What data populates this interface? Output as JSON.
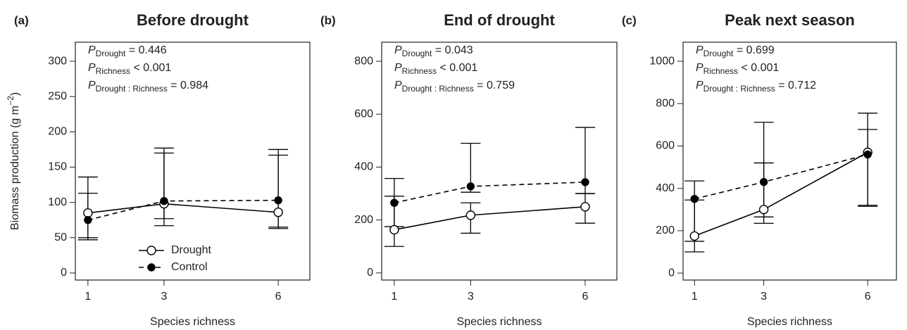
{
  "chart_data": [
    {
      "type": "line",
      "panel": "(a)",
      "title": "Before drought",
      "xlabel": "Species richness",
      "ylabel": "Biomass production (g m",
      "ylabel_exponent": "−2",
      "ylabel_end": ")",
      "x": [
        1,
        3,
        6
      ],
      "xlim": [
        0.67,
        6.83
      ],
      "xticks": [
        1,
        3,
        6
      ],
      "ylim": [
        -10,
        327
      ],
      "yticks": [
        0,
        50,
        100,
        150,
        200,
        250,
        300
      ],
      "legend": "bottom left",
      "stat_symbol": "P",
      "stats": [
        {
          "subscript": "Drought",
          "text": "= 0.446"
        },
        {
          "subscript": "Richness",
          "text": "< 0.001"
        },
        {
          "subscript": "Drought : Richness",
          "text": "= 0.984"
        }
      ],
      "series": [
        {
          "name": "Drought",
          "color": "#000000",
          "marker": "open",
          "dashed": false,
          "values": [
            85,
            98,
            86
          ],
          "lower": [
            50,
            67,
            65
          ],
          "upper": [
            136,
            170,
            167
          ]
        },
        {
          "name": "Control",
          "color": "#000000",
          "marker": "filled",
          "dashed": true,
          "values": [
            75,
            102,
            103
          ],
          "lower": [
            47,
            77,
            63
          ],
          "upper": [
            113,
            177,
            175
          ]
        }
      ]
    },
    {
      "type": "line",
      "panel": "(b)",
      "title": "End of drought",
      "xlabel": "Species richness",
      "x": [
        1,
        3,
        6
      ],
      "xlim": [
        0.67,
        6.83
      ],
      "xticks": [
        1,
        3,
        6
      ],
      "ylim": [
        -27,
        872
      ],
      "yticks": [
        0,
        200,
        400,
        600,
        800
      ],
      "stat_symbol": "P",
      "stats": [
        {
          "subscript": "Drought",
          "text": "= 0.043"
        },
        {
          "subscript": "Richness",
          "text": "< 0.001"
        },
        {
          "subscript": "Drought : Richness",
          "text": "= 0.759"
        }
      ],
      "series": [
        {
          "name": "Drought",
          "color": "#000000",
          "marker": "open",
          "dashed": false,
          "values": [
            163,
            218,
            250
          ],
          "lower": [
            100,
            150,
            188
          ],
          "upper": [
            290,
            265,
            300
          ]
        },
        {
          "name": "Control",
          "color": "#000000",
          "marker": "filled",
          "dashed": true,
          "values": [
            265,
            327,
            343
          ],
          "lower": [
            175,
            305,
            300
          ],
          "upper": [
            357,
            490,
            550
          ]
        }
      ]
    },
    {
      "type": "line",
      "panel": "(c)",
      "title": "Peak next season",
      "xlabel": "Species richness",
      "x": [
        1,
        3,
        6
      ],
      "xlim": [
        0.67,
        6.83
      ],
      "xticks": [
        1,
        3,
        6
      ],
      "ylim": [
        -33,
        1090
      ],
      "yticks": [
        0,
        200,
        400,
        600,
        800,
        1000
      ],
      "stat_symbol": "P",
      "stats": [
        {
          "subscript": "Drought",
          "text": "= 0.699"
        },
        {
          "subscript": "Richness",
          "text": "< 0.001"
        },
        {
          "subscript": "Drought : Richness",
          "text": "= 0.712"
        }
      ],
      "series": [
        {
          "name": "Drought",
          "color": "#000000",
          "marker": "open",
          "dashed": false,
          "values": [
            175,
            300,
            570
          ],
          "lower": [
            100,
            235,
            320
          ],
          "upper": [
            345,
            520,
            755
          ]
        },
        {
          "name": "Control",
          "color": "#000000",
          "marker": "filled",
          "dashed": true,
          "values": [
            350,
            430,
            560
          ],
          "lower": [
            150,
            265,
            315
          ],
          "upper": [
            435,
            712,
            678
          ]
        }
      ]
    }
  ]
}
